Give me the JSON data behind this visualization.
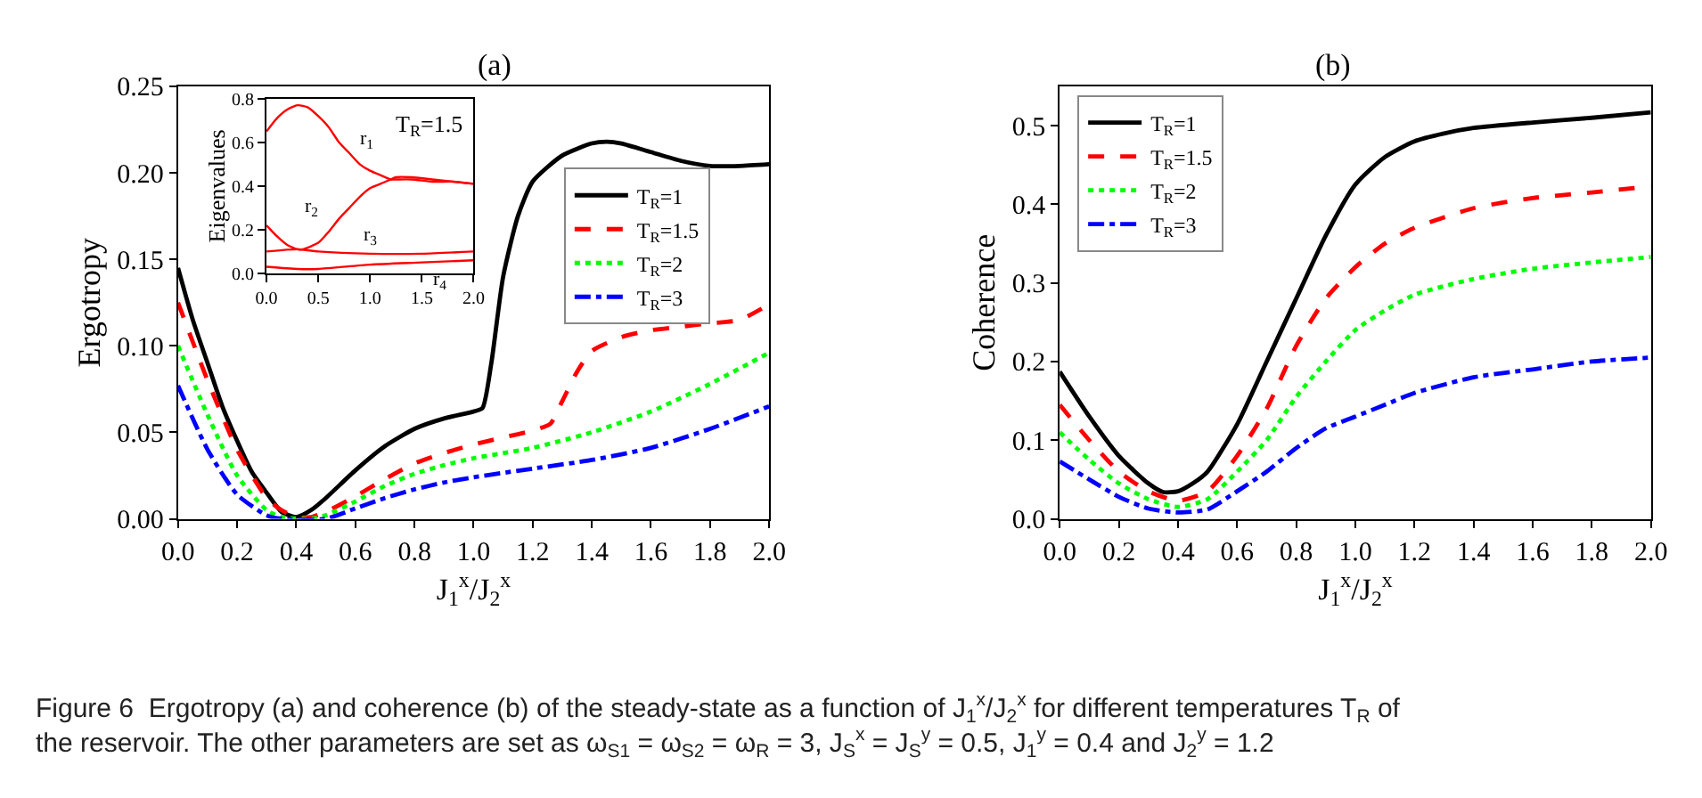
{
  "chart_data": [
    {
      "type": "line",
      "title": "(a)",
      "xlabel": "J$_{1}$$^{x}$/J$_{2}$$^{x}$",
      "ylabel": "Ergotropy",
      "xlim": [
        0,
        2
      ],
      "ylim": [
        0,
        0.25
      ],
      "xticks": [
        {
          "value": 0,
          "label": "0.0"
        },
        {
          "value": 0.2,
          "label": "0.2"
        },
        {
          "value": 0.4,
          "label": "0.4"
        },
        {
          "value": 0.6,
          "label": "0.6"
        },
        {
          "value": 0.8,
          "label": "0.8"
        },
        {
          "value": 1,
          "label": "1.0"
        },
        {
          "value": 1.2,
          "label": "1.2"
        },
        {
          "value": 1.4,
          "label": "1.4"
        },
        {
          "value": 1.6,
          "label": "1.6"
        },
        {
          "value": 1.8,
          "label": "1.8"
        },
        {
          "value": 2,
          "label": "2.0"
        }
      ],
      "yticks": [
        {
          "value": 0,
          "label": "0.00"
        },
        {
          "value": 0.05,
          "label": "0.05"
        },
        {
          "value": 0.1,
          "label": "0.10"
        },
        {
          "value": 0.15,
          "label": "0.15"
        },
        {
          "value": 0.2,
          "label": "0.20"
        },
        {
          "value": 0.25,
          "label": "0.25"
        }
      ],
      "legend": "right",
      "grid": false,
      "marker": "none",
      "series": [
        {
          "name": "T$_{R}$=1",
          "color": "#000000",
          "line_style": "solid",
          "x": [
            0,
            0.05,
            0.1,
            0.15,
            0.2,
            0.25,
            0.3,
            0.35,
            0.4,
            0.45,
            0.5,
            0.6,
            0.7,
            0.8,
            0.9,
            1.0,
            1.03,
            1.06,
            1.1,
            1.15,
            1.2,
            1.3,
            1.4,
            1.45,
            1.5,
            1.6,
            1.7,
            1.8,
            1.9,
            2.0
          ],
          "values": [
            0.145,
            0.115,
            0.09,
            0.065,
            0.045,
            0.027,
            0.015,
            0.004,
            0.001,
            0.005,
            0.012,
            0.028,
            0.042,
            0.052,
            0.058,
            0.062,
            0.064,
            0.09,
            0.14,
            0.175,
            0.195,
            0.21,
            0.217,
            0.218,
            0.217,
            0.212,
            0.207,
            0.204,
            0.204,
            0.205
          ]
        },
        {
          "name": "T$_{R}$=1.5",
          "color": "#ff0000",
          "line_style": "dashed",
          "x": [
            0,
            0.1,
            0.2,
            0.3,
            0.35,
            0.4,
            0.45,
            0.5,
            0.6,
            0.7,
            0.8,
            0.9,
            1.0,
            1.1,
            1.2,
            1.26,
            1.3,
            1.35,
            1.4,
            1.5,
            1.6,
            1.7,
            1.8,
            1.9,
            2.0
          ],
          "values": [
            0.125,
            0.08,
            0.04,
            0.012,
            0.005,
            0.001,
            0.001,
            0.004,
            0.013,
            0.023,
            0.032,
            0.038,
            0.043,
            0.047,
            0.051,
            0.055,
            0.068,
            0.085,
            0.097,
            0.105,
            0.109,
            0.111,
            0.113,
            0.115,
            0.124
          ]
        },
        {
          "name": "T$_{R}$=2",
          "color": "#00ff00",
          "line_style": "dotted",
          "x": [
            0,
            0.1,
            0.2,
            0.3,
            0.35,
            0.45,
            0.5,
            0.6,
            0.7,
            0.8,
            0.9,
            1.0,
            1.2,
            1.4,
            1.6,
            1.8,
            2.0
          ],
          "values": [
            0.1,
            0.06,
            0.025,
            0.005,
            0.001,
            0.0,
            0.002,
            0.01,
            0.019,
            0.026,
            0.031,
            0.035,
            0.041,
            0.05,
            0.062,
            0.078,
            0.096
          ]
        },
        {
          "name": "T$_{R}$=3",
          "color": "#0000ff",
          "line_style": "dashdot",
          "x": [
            0,
            0.1,
            0.2,
            0.3,
            0.35,
            0.5,
            0.6,
            0.7,
            0.8,
            0.9,
            1.0,
            1.2,
            1.4,
            1.6,
            1.8,
            2.0
          ],
          "values": [
            0.077,
            0.04,
            0.014,
            0.002,
            0.0,
            0.0,
            0.006,
            0.012,
            0.017,
            0.021,
            0.024,
            0.029,
            0.034,
            0.041,
            0.052,
            0.065
          ]
        }
      ],
      "annotations": [
        "Figure 6  Ergotropy (a) and coherence (b) of the steady-state as a function of J$_{1}$$^{x}$/J$_{2}$$^{x}$ for different temperatures T$_{R}$ of the reservoir. The other parameters are set as ω$_{S1}$ = ω$_{S2}$ = ω$_{R}$ = 3, J$_{S}$$^{x}$ = J$_{S}$$^{y}$ = 0.5, J$_{1}$$^{y}$ = 0.4 and J$_{2}$$^{y}$ = 1.2"
      ]
    },
    {
      "type": "line",
      "ylabel": "Eigenvalues",
      "xlim": [
        0,
        2
      ],
      "ylim": [
        0,
        0.8
      ],
      "xticks": [
        {
          "value": 0,
          "label": "0.0"
        },
        {
          "value": 0.5,
          "label": "0.5"
        },
        {
          "value": 1,
          "label": "1.0"
        },
        {
          "value": 1.5,
          "label": "1.5"
        },
        {
          "value": 2,
          "label": "2.0"
        }
      ],
      "yticks": [
        {
          "value": 0,
          "label": "0.0"
        },
        {
          "value": 0.2,
          "label": "0.2"
        },
        {
          "value": 0.4,
          "label": "0.4"
        },
        {
          "value": 0.6,
          "label": "0.6"
        },
        {
          "value": 0.8,
          "label": "0.8"
        }
      ],
      "grid": false,
      "marker": "none",
      "series": [
        {
          "name": "r$_{1}$",
          "color": "#ff0000",
          "line_style": "solid",
          "x": [
            0,
            0.1,
            0.2,
            0.3,
            0.4,
            0.5,
            0.6,
            0.7,
            0.8,
            0.9,
            1.0,
            1.1,
            1.2,
            1.25,
            1.4,
            1.6,
            1.8,
            2.0
          ],
          "values": [
            0.65,
            0.71,
            0.75,
            0.77,
            0.76,
            0.72,
            0.67,
            0.6,
            0.55,
            0.5,
            0.47,
            0.45,
            0.43,
            0.43,
            0.43,
            0.42,
            0.42,
            0.41
          ]
        },
        {
          "name": "r$_{2}$",
          "color": "#ff0000",
          "line_style": "solid",
          "x": [
            0,
            0.1,
            0.2,
            0.3,
            0.35,
            0.5,
            0.6,
            0.7,
            0.8,
            0.9,
            1.0,
            1.1,
            1.2,
            1.25,
            1.4,
            1.6,
            1.8,
            2.0
          ],
          "values": [
            0.22,
            0.17,
            0.13,
            0.11,
            0.11,
            0.14,
            0.19,
            0.25,
            0.3,
            0.35,
            0.39,
            0.41,
            0.43,
            0.44,
            0.44,
            0.43,
            0.42,
            0.41
          ]
        },
        {
          "name": "r$_{3}$",
          "color": "#ff0000",
          "line_style": "solid",
          "x": [
            0,
            0.3,
            0.5,
            1.0,
            1.5,
            2.0
          ],
          "values": [
            0.1,
            0.11,
            0.1,
            0.09,
            0.09,
            0.1
          ]
        },
        {
          "name": "r$_{4}$",
          "color": "#ff0000",
          "line_style": "solid",
          "x": [
            0,
            0.3,
            0.5,
            1.0,
            1.5,
            2.0
          ],
          "values": [
            0.03,
            0.02,
            0.02,
            0.04,
            0.05,
            0.06
          ]
        }
      ],
      "annotations": [
        "T$_{R}$=1.5"
      ]
    },
    {
      "type": "line",
      "title": "(b)",
      "xlabel": "J$_{1}$$^{x}$/J$_{2}$$^{x}$",
      "ylabel": "Coherence",
      "xlim": [
        0,
        2
      ],
      "ylim": [
        0,
        0.55
      ],
      "xticks": [
        {
          "value": 0,
          "label": "0.0"
        },
        {
          "value": 0.2,
          "label": "0.2"
        },
        {
          "value": 0.4,
          "label": "0.4"
        },
        {
          "value": 0.6,
          "label": "0.6"
        },
        {
          "value": 0.8,
          "label": "0.8"
        },
        {
          "value": 1,
          "label": "1.0"
        },
        {
          "value": 1.2,
          "label": "1.2"
        },
        {
          "value": 1.4,
          "label": "1.4"
        },
        {
          "value": 1.6,
          "label": "1.6"
        },
        {
          "value": 1.8,
          "label": "1.8"
        },
        {
          "value": 2,
          "label": "2.0"
        }
      ],
      "yticks": [
        {
          "value": 0,
          "label": "0.0"
        },
        {
          "value": 0.1,
          "label": "0.1"
        },
        {
          "value": 0.2,
          "label": "0.2"
        },
        {
          "value": 0.3,
          "label": "0.3"
        },
        {
          "value": 0.4,
          "label": "0.4"
        },
        {
          "value": 0.5,
          "label": "0.5"
        }
      ],
      "legend": "top left",
      "grid": false,
      "marker": "none",
      "series": [
        {
          "name": "T$_{R}$=1",
          "color": "#000000",
          "line_style": "solid",
          "x": [
            0,
            0.1,
            0.2,
            0.3,
            0.35,
            0.4,
            0.45,
            0.5,
            0.6,
            0.7,
            0.8,
            0.9,
            1.0,
            1.1,
            1.2,
            1.3,
            1.4,
            1.6,
            1.8,
            2.0
          ],
          "values": [
            0.187,
            0.13,
            0.08,
            0.045,
            0.034,
            0.035,
            0.045,
            0.06,
            0.12,
            0.2,
            0.28,
            0.36,
            0.425,
            0.46,
            0.48,
            0.49,
            0.497,
            0.504,
            0.51,
            0.517
          ]
        },
        {
          "name": "T$_{R}$=1.5",
          "color": "#ff0000",
          "line_style": "dashed",
          "x": [
            0,
            0.1,
            0.2,
            0.3,
            0.4,
            0.5,
            0.6,
            0.7,
            0.8,
            0.9,
            1.0,
            1.1,
            1.2,
            1.4,
            1.6,
            1.8,
            2.0
          ],
          "values": [
            0.145,
            0.1,
            0.06,
            0.035,
            0.023,
            0.035,
            0.08,
            0.14,
            0.22,
            0.28,
            0.32,
            0.35,
            0.37,
            0.395,
            0.408,
            0.415,
            0.423
          ]
        },
        {
          "name": "T$_{R}$=2",
          "color": "#00ff00",
          "line_style": "dotted",
          "x": [
            0,
            0.1,
            0.2,
            0.3,
            0.4,
            0.5,
            0.6,
            0.7,
            0.8,
            0.9,
            1.0,
            1.1,
            1.2,
            1.4,
            1.6,
            1.8,
            2.0
          ],
          "values": [
            0.11,
            0.075,
            0.045,
            0.025,
            0.015,
            0.025,
            0.06,
            0.1,
            0.155,
            0.2,
            0.24,
            0.265,
            0.285,
            0.305,
            0.318,
            0.326,
            0.333
          ]
        },
        {
          "name": "T$_{R}$=3",
          "color": "#0000ff",
          "line_style": "dashdot",
          "x": [
            0,
            0.1,
            0.2,
            0.3,
            0.4,
            0.5,
            0.6,
            0.7,
            0.8,
            0.9,
            1.0,
            1.1,
            1.2,
            1.4,
            1.6,
            1.8,
            2.0
          ],
          "values": [
            0.073,
            0.05,
            0.028,
            0.013,
            0.008,
            0.012,
            0.035,
            0.06,
            0.09,
            0.115,
            0.13,
            0.145,
            0.16,
            0.18,
            0.19,
            0.2,
            0.205
          ]
        }
      ]
    }
  ]
}
